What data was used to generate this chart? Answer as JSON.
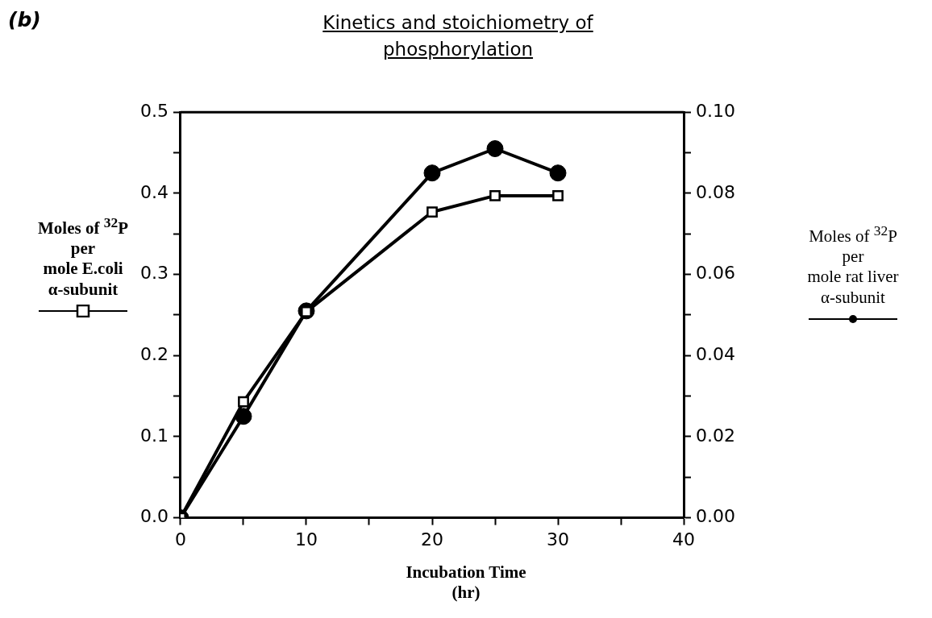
{
  "chart_data": {
    "type": "line",
    "title": "Kinetics and stoichiometry of phosphorylation",
    "xlabel": "Incubation Time\n(hr)",
    "ylabel": "Moles of $^{32}$P\nper\nmole E.coli\nα-subunit",
    "y2label": "Moles of $^{32}$P\nper\nmole rat liver\nα-subunit",
    "annotations": [
      "(b)"
    ],
    "x": [
      0,
      5,
      10,
      20,
      25,
      30
    ],
    "series": [
      {
        "color": "#000000",
        "marker": "square",
        "values": [
          0,
          0.143,
          0.254,
          0.377,
          0.397,
          0.397
        ]
      },
      {
        "color": "#000000",
        "marker": "circle",
        "axis": "y2",
        "values": [
          0,
          0.025,
          0.051,
          0.085,
          0.091,
          0.085
        ]
      }
    ],
    "xlim": [
      0,
      40
    ],
    "xticks": [
      0,
      {
        "value": 5,
        "label": null
      },
      10,
      {
        "value": 15,
        "label": null
      },
      20,
      {
        "value": 25,
        "label": null
      },
      30,
      {
        "value": 35,
        "label": null
      },
      40
    ],
    "ylim": [
      0,
      0.5
    ],
    "yticks": [
      {
        "value": 0,
        "label": "0.0"
      },
      {
        "value": 0.05,
        "label": null
      },
      0.1,
      {
        "value": 0.15,
        "label": null
      },
      0.2,
      {
        "value": 0.25,
        "label": null
      },
      0.3,
      {
        "value": 0.35,
        "label": null
      },
      0.4,
      {
        "value": 0.45,
        "label": null
      },
      0.5
    ],
    "y2lim": [
      0,
      0.1
    ],
    "y2ticks": [
      {
        "value": 0,
        "label": "0.00"
      },
      {
        "value": 0.01,
        "label": null
      },
      {
        "value": 0.02,
        "label": "0.02"
      },
      {
        "value": 0.03,
        "label": null
      },
      {
        "value": 0.04,
        "label": "0.04"
      },
      {
        "value": 0.05,
        "label": null
      },
      {
        "value": 0.06,
        "label": "0.06"
      },
      {
        "value": 0.07,
        "label": null
      },
      {
        "value": 0.08,
        "label": "0.08"
      },
      {
        "value": 0.09,
        "label": null
      },
      {
        "value": 0.1,
        "label": "0.10"
      }
    ],
    "grid": false,
    "legend": false,
    "line_style": "solid"
  }
}
